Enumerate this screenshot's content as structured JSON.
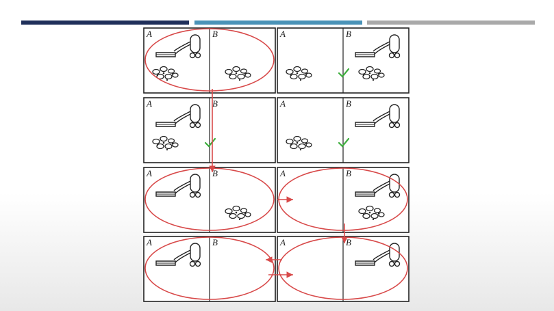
{
  "slide": {
    "header_bar_colors": [
      "#1f2f5a",
      "#4a93b8",
      "#a9a9a9"
    ]
  },
  "state_space": {
    "square_a_label": "A",
    "square_b_label": "B",
    "states": [
      {
        "vacuum": "A",
        "dirt_a": true,
        "dirt_b": true,
        "checked": "none",
        "circled": true
      },
      {
        "vacuum": "B",
        "dirt_a": true,
        "dirt_b": true,
        "checked": "border",
        "circled": false
      },
      {
        "vacuum": "A",
        "dirt_a": true,
        "dirt_b": false,
        "checked": "border",
        "circled": false
      },
      {
        "vacuum": "B",
        "dirt_a": true,
        "dirt_b": false,
        "checked": "border",
        "circled": false
      },
      {
        "vacuum": "A",
        "dirt_a": false,
        "dirt_b": true,
        "checked": "none",
        "circled": true
      },
      {
        "vacuum": "B",
        "dirt_a": false,
        "dirt_b": true,
        "checked": "none",
        "circled": true
      },
      {
        "vacuum": "A",
        "dirt_a": false,
        "dirt_b": false,
        "checked": "none",
        "circled": true
      },
      {
        "vacuum": "B",
        "dirt_a": false,
        "dirt_b": false,
        "checked": "none",
        "circled": true
      }
    ],
    "annotation_color": "#d84a4a",
    "check_color": "#3fae3f"
  }
}
